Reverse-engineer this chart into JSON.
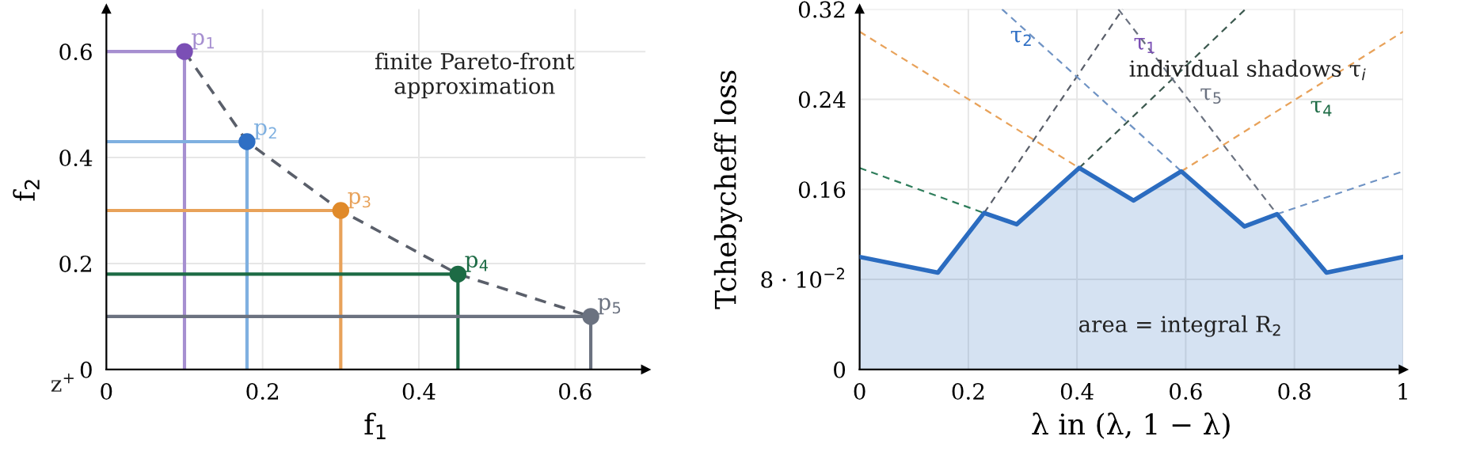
{
  "chart_data": [
    {
      "type": "line",
      "xlabel": "f$_{1}$",
      "ylabel": "f$_{2}$",
      "xlim": [
        0,
        0.69
      ],
      "ylim": [
        0,
        0.68
      ],
      "xticks": [
        0,
        0.2,
        0.4,
        0.6
      ],
      "yticks": [
        0,
        0.2,
        0.4,
        0.6
      ],
      "grid": true,
      "legend": false,
      "annotations": [
        "finite Pareto-front\napproximation",
        "z$^{+}$"
      ],
      "series": [
        {
          "name": "p$_{1}$",
          "color": "#a68fd0",
          "x": [
            0,
            0.1,
            0.1
          ],
          "values": [
            0.6,
            0.6,
            0
          ]
        },
        {
          "name": "p$_{2}$",
          "color": "#7fb0e0",
          "x": [
            0,
            0.18,
            0.18
          ],
          "values": [
            0.43,
            0.43,
            0
          ]
        },
        {
          "name": "p$_{3}$",
          "color": "#e8a25a",
          "x": [
            0,
            0.3,
            0.3
          ],
          "values": [
            0.3,
            0.3,
            0
          ]
        },
        {
          "name": "p$_{4}$",
          "color": "#1d6b45",
          "x": [
            0,
            0.45,
            0.45
          ],
          "values": [
            0.18,
            0.18,
            0
          ]
        },
        {
          "name": "p$_{5}$",
          "color": "#6b7280",
          "x": [
            0,
            0.62,
            0.62
          ],
          "values": [
            0.1,
            0.1,
            0
          ]
        },
        {
          "color": "#5a5f6a",
          "line_style": "dashed",
          "x": [
            0.1,
            0.18,
            0.3,
            0.45,
            0.62
          ],
          "values": [
            0.6,
            0.43,
            0.3,
            0.18,
            0.1
          ]
        },
        {
          "type": "scatter",
          "marker": "circle",
          "colors": [
            "#7b4fb5",
            "#2f6fc4",
            "#e08a2a",
            "#1d6b45",
            "#6b7280"
          ],
          "x": [
            0.1,
            0.18,
            0.3,
            0.45,
            0.62
          ],
          "values": [
            0.6,
            0.43,
            0.3,
            0.18,
            0.1
          ]
        }
      ]
    },
    {
      "type": "line",
      "xlabel": "λ in (λ, 1 − λ)",
      "ylabel": "Tchebycheff loss",
      "xlim": [
        0,
        1
      ],
      "ylim": [
        0,
        0.32
      ],
      "xticks": [
        0,
        0.2,
        0.4,
        0.6,
        0.8,
        1
      ],
      "yticks": [
        0,
        {
          "value": 0.08,
          "label": "8 · 10$^{−2}$"
        },
        0.16,
        0.24,
        0.32
      ],
      "grid": true,
      "legend": false,
      "annotations": [
        "τ$_{2}$",
        "τ$_{1}$",
        "individual shadows τ$_{i}$",
        "τ$_{5}$",
        "τ$_{4}$",
        "area = integral R$_{2}$"
      ],
      "series": [
        {
          "color": "#e8a25a",
          "line_style": "dashed",
          "x": [
            0,
            0.404,
            0.5,
            0.592,
            1
          ],
          "values": [
            0.3,
            0.179,
            null,
            0.176,
            0.3
          ]
        },
        {
          "color": "#2e7d5b",
          "line_style": "dashed",
          "x": [
            0,
            0.229
          ],
          "values": [
            0.179,
            0.139
          ]
        },
        {
          "color": "#3d5a50",
          "line_style": "dashed",
          "x": [
            0.404,
            0.71
          ],
          "values": [
            0.179,
            0.32
          ]
        },
        {
          "color": "#5a5f6a",
          "line_style": "dashed",
          "x": [
            0.229,
            0.484
          ],
          "values": [
            0.139,
            0.32
          ]
        },
        {
          "color": "#6f93c4",
          "line_style": "dashed",
          "x": [
            0.262,
            0.592
          ],
          "values": [
            0.32,
            0.176
          ]
        },
        {
          "color": "#6f93c4",
          "line_style": "dashed",
          "x": [
            0.768,
            1
          ],
          "values": [
            0.138,
            0.176
          ]
        },
        {
          "color": "#6b7280",
          "line_style": "dashed",
          "x": [
            0.476,
            0.768
          ],
          "values": [
            0.32,
            0.138
          ]
        },
        {
          "type": "area",
          "color": "#2b6cc0",
          "x": [
            0,
            0.144,
            0.229,
            0.289,
            0.404,
            0.504,
            0.592,
            0.708,
            0.768,
            0.859,
            1
          ],
          "values": [
            0.1,
            0.086,
            0.139,
            0.129,
            0.179,
            0.15,
            0.176,
            0.127,
            0.138,
            0.086,
            0.1
          ]
        }
      ]
    }
  ]
}
